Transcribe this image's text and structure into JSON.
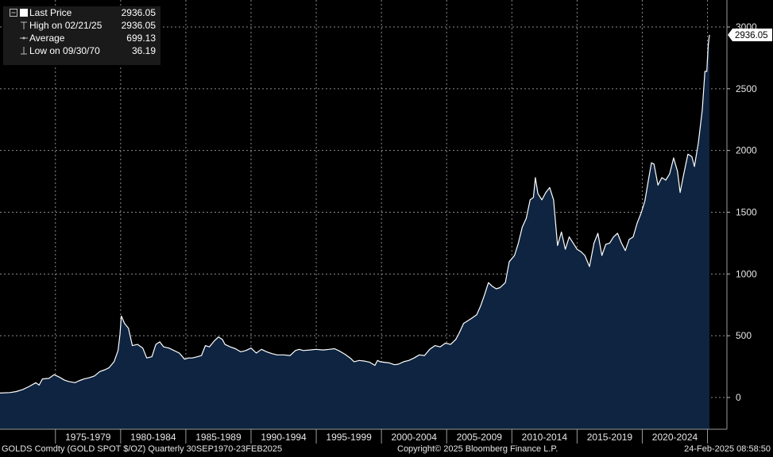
{
  "legend": {
    "last_price_label": "Last Price",
    "last_price_value": "2936.05",
    "high_label": "High on 02/21/25",
    "high_value": "2936.05",
    "average_label": "Average",
    "average_value": "699.13",
    "low_label": "Low on 09/30/70",
    "low_value": "36.19"
  },
  "last_price_tag": "2936.05",
  "footer": {
    "security": "GOLDS Comdty (GOLD SPOT $/OZ)  Quarterly 30SEP1970-23FEB2025",
    "copyright": "Copyright© 2025 Bloomberg Finance L.P.",
    "timestamp": "24-Feb-2025 08:58:50"
  },
  "colors": {
    "background": "#000000",
    "area_fill": "#0e2440",
    "line": "#ffffff",
    "grid": "#8a8a8a"
  },
  "chart_data": {
    "type": "area",
    "title": "",
    "xlabel": "",
    "ylabel": "",
    "ylim": [
      -300,
      3000
    ],
    "y_ticks": [
      0,
      500,
      1000,
      1500,
      2000,
      2500,
      3000
    ],
    "y_tick_labels": [
      "0",
      "500",
      "1000",
      "1500",
      "2000",
      "2500",
      "3000"
    ],
    "x_categories": [
      "1975-1979",
      "1980-1984",
      "1985-1989",
      "1990-1994",
      "1995-1999",
      "2000-2004",
      "2005-2009",
      "2010-2014",
      "2015-2019",
      "2020-2024"
    ],
    "x_range": [
      1970.75,
      2025.15
    ],
    "grid": true,
    "legend_position": "top-left",
    "series": [
      {
        "name": "Last Price",
        "x": [
          1970.75,
          1971.5,
          1972.0,
          1972.5,
          1973.0,
          1973.5,
          1973.75,
          1974.0,
          1974.5,
          1974.9,
          1975.3,
          1975.7,
          1976.0,
          1976.5,
          1976.8,
          1977.2,
          1977.6,
          1978.0,
          1978.4,
          1978.8,
          1979.1,
          1979.5,
          1979.8,
          1979.95,
          1980.05,
          1980.3,
          1980.6,
          1980.9,
          1981.3,
          1981.7,
          1982.0,
          1982.4,
          1982.7,
          1983.0,
          1983.3,
          1983.7,
          1984.0,
          1984.5,
          1984.9,
          1985.2,
          1985.5,
          1985.9,
          1986.2,
          1986.5,
          1986.8,
          1987.2,
          1987.5,
          1987.8,
          1988.0,
          1988.4,
          1988.8,
          1989.2,
          1989.6,
          1990.0,
          1990.4,
          1990.8,
          1991.2,
          1991.6,
          1992.0,
          1992.5,
          1993.0,
          1993.4,
          1993.7,
          1994.0,
          1994.5,
          1995.0,
          1995.5,
          1996.0,
          1996.4,
          1996.8,
          1997.2,
          1997.6,
          1997.9,
          1998.3,
          1998.7,
          1999.1,
          1999.5,
          1999.7,
          1999.9,
          2000.2,
          2000.6,
          2001.0,
          2001.3,
          2001.7,
          2002.1,
          2002.5,
          2002.9,
          2003.3,
          2003.7,
          2004.1,
          2004.5,
          2004.9,
          2005.3,
          2005.7,
          2005.95,
          2006.3,
          2006.6,
          2006.9,
          2007.3,
          2007.6,
          2007.9,
          2008.2,
          2008.5,
          2008.8,
          2009.1,
          2009.5,
          2009.8,
          2010.2,
          2010.5,
          2010.8,
          2011.1,
          2011.4,
          2011.65,
          2011.8,
          2012.0,
          2012.3,
          2012.6,
          2012.9,
          2013.2,
          2013.5,
          2013.8,
          2014.1,
          2014.4,
          2014.7,
          2015.0,
          2015.3,
          2015.6,
          2015.95,
          2016.3,
          2016.6,
          2016.9,
          2017.2,
          2017.5,
          2017.8,
          2018.1,
          2018.4,
          2018.7,
          2019.0,
          2019.3,
          2019.6,
          2019.9,
          2020.2,
          2020.5,
          2020.7,
          2020.9,
          2021.2,
          2021.5,
          2021.8,
          2022.1,
          2022.4,
          2022.7,
          2022.9,
          2023.2,
          2023.5,
          2023.8,
          2024.0,
          2024.3,
          2024.6,
          2024.8,
          2024.95,
          2025.05,
          2025.15
        ],
        "y": [
          36,
          40,
          48,
          65,
          90,
          120,
          100,
          150,
          155,
          185,
          165,
          140,
          130,
          120,
          135,
          150,
          160,
          175,
          210,
          225,
          240,
          290,
          380,
          510,
          660,
          600,
          560,
          420,
          430,
          400,
          320,
          330,
          430,
          450,
          410,
          400,
          385,
          360,
          310,
          320,
          320,
          330,
          340,
          420,
          410,
          460,
          490,
          470,
          430,
          410,
          395,
          370,
          380,
          400,
          360,
          390,
          370,
          355,
          345,
          345,
          340,
          380,
          390,
          380,
          385,
          390,
          385,
          390,
          395,
          375,
          350,
          320,
          290,
          300,
          295,
          285,
          260,
          300,
          290,
          285,
          280,
          265,
          270,
          290,
          300,
          320,
          345,
          340,
          390,
          420,
          410,
          440,
          430,
          470,
          520,
          600,
          620,
          640,
          670,
          740,
          830,
          930,
          900,
          880,
          890,
          930,
          1100,
          1150,
          1250,
          1380,
          1450,
          1600,
          1620,
          1780,
          1650,
          1600,
          1660,
          1700,
          1600,
          1230,
          1340,
          1200,
          1300,
          1250,
          1200,
          1180,
          1150,
          1060,
          1250,
          1330,
          1150,
          1240,
          1250,
          1300,
          1330,
          1250,
          1190,
          1280,
          1300,
          1410,
          1490,
          1590,
          1780,
          1900,
          1890,
          1720,
          1780,
          1760,
          1810,
          1940,
          1830,
          1660,
          1820,
          1970,
          1950,
          1870,
          2060,
          2330,
          2640,
          2640,
          2850,
          2936
        ]
      }
    ]
  }
}
